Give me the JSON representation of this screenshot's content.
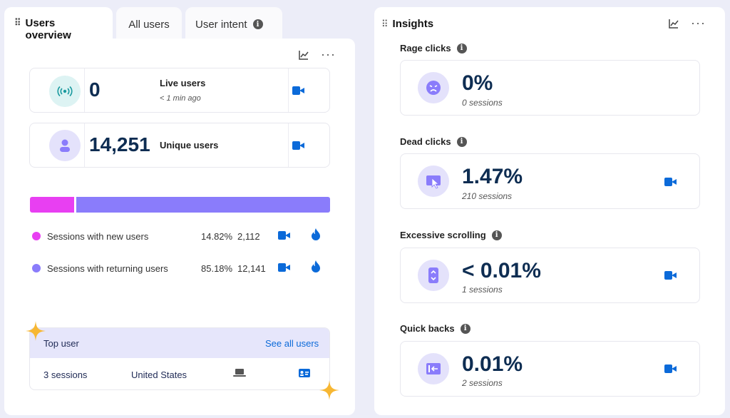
{
  "tabs": [
    {
      "label": "Users overview",
      "active": true
    },
    {
      "label": "All users",
      "active": false
    },
    {
      "label": "User intent",
      "active": false,
      "info": true
    }
  ],
  "live_users": {
    "value": "0",
    "label": "Live users",
    "sub": "< 1 min ago"
  },
  "unique_users": {
    "value": "14,251",
    "label": "Unique users"
  },
  "sessions_bar": {
    "new_fraction": 0.1482,
    "returning_fraction": 0.8518,
    "new_color": "#e83ff2",
    "returning_color": "#8a7cfb"
  },
  "sessions": [
    {
      "label": "Sessions with new users",
      "pct": "14.82%",
      "count": "2,112",
      "color": "#e83ff2"
    },
    {
      "label": "Sessions with returning users",
      "pct": "85.18%",
      "count": "12,141",
      "color": "#8a7cfb"
    }
  ],
  "top_user": {
    "title": "Top user",
    "see_all": "See all users",
    "sessions": "3 sessions",
    "country": "United States"
  },
  "insights": {
    "title": "Insights",
    "items": [
      {
        "title": "Rage clicks",
        "value": "0%",
        "sub": "0 sessions",
        "icon": "angry-face-icon",
        "has_recording": false
      },
      {
        "title": "Dead clicks",
        "value": "1.47%",
        "sub": "210 sessions",
        "icon": "cursor-screen-icon",
        "has_recording": true
      },
      {
        "title": "Excessive scrolling",
        "value": "< 0.01%",
        "sub": "1 sessions",
        "icon": "scroll-phone-icon",
        "has_recording": true
      },
      {
        "title": "Quick backs",
        "value": "0.01%",
        "sub": "2 sessions",
        "icon": "back-arrow-icon",
        "has_recording": true
      }
    ]
  }
}
